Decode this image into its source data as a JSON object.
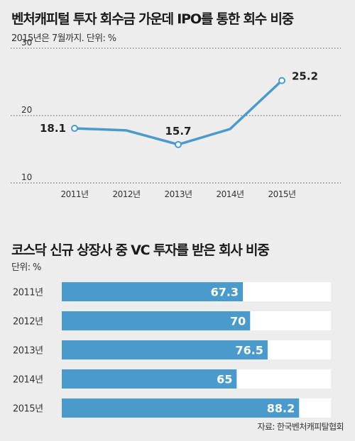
{
  "source": "자료: 한국벤처캐피탈협회",
  "chart_data": [
    {
      "type": "line",
      "title": "벤처캐피털 투자 회수금 가운데 IPO를 통한 회수 비중",
      "subtitle": "2015년은 7월까지. 단위: %",
      "x": [
        "2011년",
        "2012년",
        "2013년",
        "2014년",
        "2015년"
      ],
      "series": [
        {
          "values": [
            18.1,
            17.8,
            15.7,
            18.0,
            25.2
          ],
          "labels": [
            "18.1",
            "",
            "15.7",
            "",
            "25.2"
          ]
        }
      ],
      "ylim": [
        10,
        30
      ],
      "yticks": [
        "10",
        "20",
        "30"
      ],
      "grid": "dotted horizontal",
      "color": "#4a9acb"
    },
    {
      "type": "bar",
      "orientation": "horizontal",
      "title": "코스닥 신규 상장사 중 VC 투자를 받은 회사 비중",
      "subtitle": "단위: %",
      "categories": [
        "2011년",
        "2012년",
        "2013년",
        "2014년",
        "2015년"
      ],
      "values": [
        67.3,
        70,
        76.5,
        65,
        88.2
      ],
      "value_labels": [
        "67.3",
        "70",
        "76.5",
        "65",
        "88.2"
      ],
      "xlim": [
        0,
        100
      ],
      "bar_color": "#4a9acb",
      "track_color": "#ffffff"
    }
  ]
}
